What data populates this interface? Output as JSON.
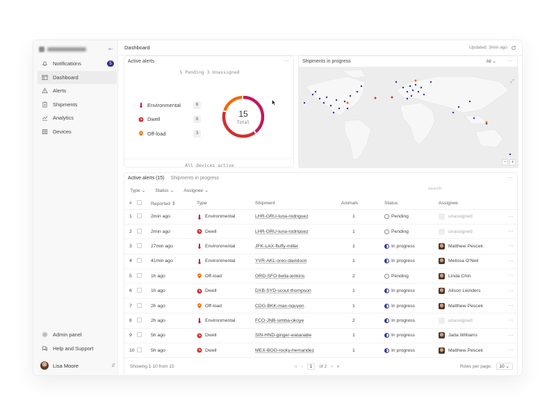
{
  "sidebar": {
    "collapse_icon": "collapse-sidebar-icon",
    "items": [
      {
        "label": "Notifications",
        "icon": "bell-icon",
        "badge": "5"
      },
      {
        "label": "Dashboard",
        "icon": "dashboard-icon",
        "active": true
      },
      {
        "label": "Alerts",
        "icon": "warning-icon"
      },
      {
        "label": "Shipments",
        "icon": "clipboard-icon"
      },
      {
        "label": "Analytics",
        "icon": "chart-icon"
      },
      {
        "label": "Devices",
        "icon": "devices-icon"
      }
    ],
    "bottom_items": [
      {
        "label": "Admin panel",
        "icon": "gear-icon"
      },
      {
        "label": "Help and Support",
        "icon": "chat-icon"
      }
    ],
    "user": {
      "name": "Lisa Moore"
    }
  },
  "header": {
    "title": "Dashboard",
    "updated": "Updated: 3min ago"
  },
  "alerts_card": {
    "title": "Active alerts",
    "summary": "5 Pending  3 Unassigned",
    "categories": [
      {
        "label": "Environmental",
        "count": "6",
        "color": "#c2185b",
        "icon": "thermometer-icon"
      },
      {
        "label": "Dwell",
        "count": "6",
        "color": "#d32f2f",
        "icon": "clock-icon"
      },
      {
        "label": "Off-load",
        "count": "3",
        "color": "#ef6c00",
        "icon": "pin-icon"
      }
    ],
    "total": "15",
    "total_label": "Total",
    "footer": "All devices active"
  },
  "map_card": {
    "title": "Shipments in progress",
    "filter": "All"
  },
  "table_card": {
    "tabs": [
      "Active alerts (15)",
      "Shipments in progress"
    ],
    "filters": [
      "Type",
      "Status",
      "Assignee"
    ],
    "search_placeholder": "search",
    "columns": [
      "#",
      "Reported",
      "Type",
      "Shipment",
      "Animals",
      "Status",
      "Assignee"
    ],
    "rows": [
      {
        "n": "1",
        "reported": "2min ago",
        "type": "Environmental",
        "shipment": "LHR-GRU-luna-rodriguez",
        "animals": "1",
        "status": "Pending",
        "assignee": "unassigned"
      },
      {
        "n": "2",
        "reported": "2min ago",
        "type": "Dwell",
        "shipment": "LHR-GRU-luna-rodriguez",
        "animals": "1",
        "status": "Pending",
        "assignee": "unassigned"
      },
      {
        "n": "3",
        "reported": "27min ago",
        "type": "Environmental",
        "shipment": "JFK-LAX-fluffy-miller",
        "animals": "1",
        "status": "In progress",
        "assignee": "Matthew Pescek"
      },
      {
        "n": "4",
        "reported": "41min ago",
        "type": "Environmental",
        "shipment": "YVR-AKL-oreo-davidson",
        "animals": "1",
        "status": "In progress",
        "assignee": "Melissa O'Neil"
      },
      {
        "n": "5",
        "reported": "1h ago",
        "type": "Off-load",
        "shipment": "ORD-SFO-bella-jenkins",
        "animals": "2",
        "status": "Pending",
        "assignee": "Linda Chin"
      },
      {
        "n": "6",
        "reported": "1h ago",
        "type": "Dwell",
        "shipment": "DXB-SYD-scout-thompson",
        "animals": "1",
        "status": "In progress",
        "assignee": "Alison Leinders"
      },
      {
        "n": "7",
        "reported": "2h ago",
        "type": "Off-load",
        "shipment": "CDG-BKK-max-nguyen",
        "animals": "1",
        "status": "In progress",
        "assignee": "Matthew Pescek"
      },
      {
        "n": "8",
        "reported": "2h ago",
        "type": "Environmental",
        "shipment": "FCO-JNB-simba-okoye",
        "animals": "2",
        "status": "In progress",
        "assignee": "unassigned"
      },
      {
        "n": "9",
        "reported": "5h ago",
        "type": "Dwell",
        "shipment": "SIN-HND-ginger-watanabe",
        "animals": "1",
        "status": "In progress",
        "assignee": "Jada Williams"
      },
      {
        "n": "10",
        "reported": "5h ago",
        "type": "Dwell",
        "shipment": "MEX-BOG-rocky-hernandez",
        "animals": "1",
        "status": "In progress",
        "assignee": "Matthew Pescek"
      }
    ],
    "pager": {
      "showing": "Showing 1-10 from 15",
      "page": "1",
      "of": "of 2",
      "rows_per_page_label": "Rows per page:",
      "rows_per_page": "10"
    }
  },
  "colors": {
    "environmental": "#c2185b",
    "dwell": "#d32f2f",
    "offload": "#ef6c00",
    "accent": "#2f3a8f"
  }
}
